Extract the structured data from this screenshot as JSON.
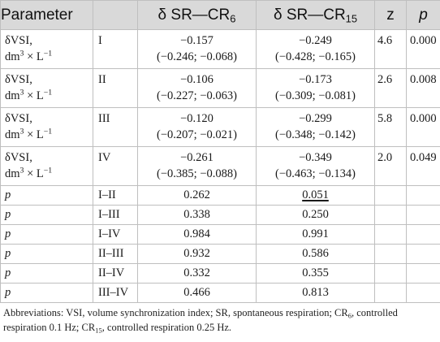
{
  "header": {
    "param": "Parameter",
    "delta_cr6_main": "δ SR—CR",
    "delta_cr6_sub": "6",
    "delta_cr15_main": "δ SR—CR",
    "delta_cr15_sub": "15",
    "z": "z",
    "p": "p"
  },
  "rows": [
    {
      "param_l1": "δVSI,",
      "unit_pre": "dm",
      "unit_sup": "3",
      "unit_mid": " × L",
      "unit_sup2": "−1",
      "group": "I",
      "cr6_med": "−0.157",
      "cr6_ci": "(−0.246; −0.068)",
      "cr15_med": "−0.249",
      "cr15_ci": "(−0.428; −0.165)",
      "z": "4.6",
      "p": "0.000"
    },
    {
      "param_l1": "δVSI,",
      "unit_pre": "dm",
      "unit_sup": "3",
      "unit_mid": " × L",
      "unit_sup2": "−1",
      "group": "II",
      "cr6_med": "−0.106",
      "cr6_ci": "(−0.227; −0.063)",
      "cr15_med": "−0.173",
      "cr15_ci": "(−0.309; −0.081)",
      "z": "2.6",
      "p": "0.008"
    },
    {
      "param_l1": "δVSI,",
      "unit_pre": "dm",
      "unit_sup": "3",
      "unit_mid": " × L",
      "unit_sup2": "−1",
      "group": "III",
      "cr6_med": "−0.120",
      "cr6_ci": "(−0.207; −0.021)",
      "cr15_med": "−0.299",
      "cr15_ci": "(−0.348; −0.142)",
      "z": "5.8",
      "p": "0.000"
    },
    {
      "param_l1": "δVSI,",
      "unit_pre": "dm",
      "unit_sup": "3",
      "unit_mid": " × L",
      "unit_sup2": "−1",
      "group": "IV",
      "cr6_med": "−0.261",
      "cr6_ci": "(−0.385; −0.088)",
      "cr15_med": "−0.349",
      "cr15_ci": "(−0.463; −0.134)",
      "z": "2.0",
      "p": "0.049"
    }
  ],
  "prows": [
    {
      "label": "p",
      "groups": "I–II",
      "cr6": "0.262",
      "cr15": "0.051",
      "cr15_underlined": true
    },
    {
      "label": "p",
      "groups": "I–III",
      "cr6": "0.338",
      "cr15": "0.250"
    },
    {
      "label": "p",
      "groups": "I–IV",
      "cr6": "0.984",
      "cr15": "0.991"
    },
    {
      "label": "p",
      "groups": "II–III",
      "cr6": "0.932",
      "cr15": "0.586"
    },
    {
      "label": "p",
      "groups": "II–IV",
      "cr6": "0.332",
      "cr15": "0.355"
    },
    {
      "label": "p",
      "groups": "III–IV",
      "cr6": "0.466",
      "cr15": "0.813"
    }
  ],
  "footnote": {
    "part1": "Abbreviations: VSI, volume synchronization index; SR, spontaneous respiration; CR",
    "sub1": "6",
    "part2": ", controlled respiration 0.1 Hz; CR",
    "sub2": "15",
    "part3": ", controlled respiration 0.25 Hz."
  }
}
